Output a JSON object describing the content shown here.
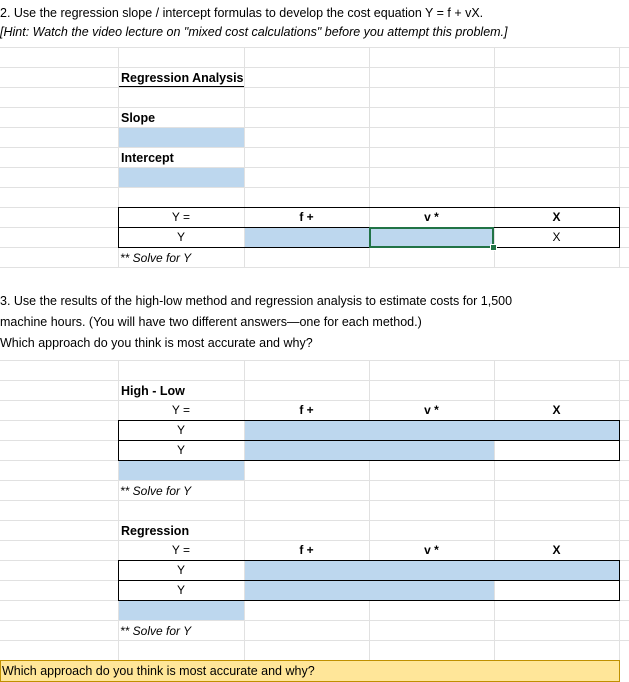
{
  "q2": {
    "line1": "2. Use the regression slope / intercept formulas to develop the cost equation Y = f + vX.",
    "line2": "[Hint:  Watch the video lecture on \"mixed cost calculations\" before you attempt this problem.]"
  },
  "regression_analysis": {
    "heading": "Regression Analysis",
    "slope_label": "Slope",
    "intercept_label": "Intercept"
  },
  "equation1": {
    "y_eq": "Y =",
    "f_plus": "f +",
    "v_star": "v *",
    "x_bold": "X",
    "y_row": "Y",
    "x_row": "X",
    "solve_note": "** Solve for Y"
  },
  "q3": {
    "line1": "3. Use the results of the high-low method and regression analysis to estimate costs for 1,500",
    "line2": "machine hours. (You will have two different answers—one for each method.)",
    "line3": "Which approach do you think is most accurate and why?"
  },
  "high_low": {
    "heading": "High - Low",
    "y_eq": "Y =",
    "f_plus": "f +",
    "v_star": "v *",
    "x_bold": "X",
    "y_row1": "Y",
    "y_row2": "Y",
    "solve_note": "** Solve for Y"
  },
  "regression": {
    "heading": "Regression",
    "y_eq": "Y =",
    "f_plus": "f +",
    "v_star": "v *",
    "x_bold": "X",
    "y_row1": "Y",
    "y_row2": "Y",
    "solve_note": "** Solve for Y"
  },
  "final_question": "Which approach do you think is most accurate and why?",
  "colors": {
    "input_fill": "#bdd7ee",
    "selection_border": "#217346",
    "answer_fill": "#ffe699",
    "grid": "#e1e1e1"
  }
}
